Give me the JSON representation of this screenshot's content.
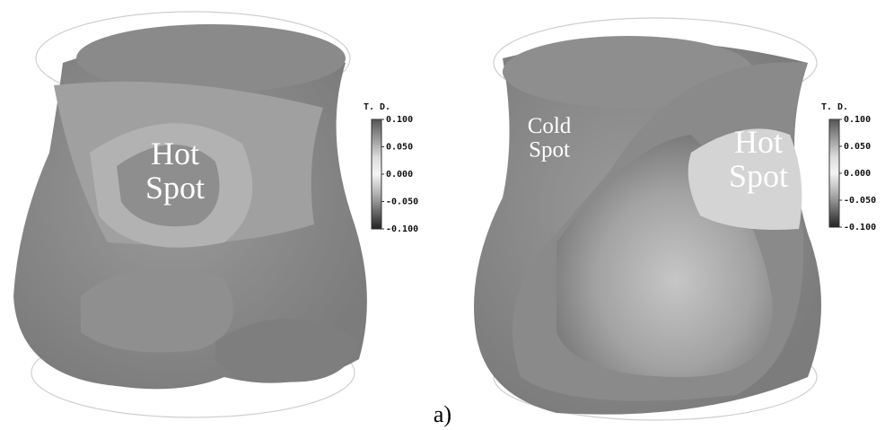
{
  "panels": [
    {
      "annotation": "Hot Spot",
      "colorbar": {
        "title": "T. D.",
        "ticks": [
          {
            "value": 0.1,
            "label": "0.100"
          },
          {
            "value": 0.05,
            "label": "0.050"
          },
          {
            "value": 0,
            "label": "0.000"
          },
          {
            "value": -0.05,
            "label": "-0.050"
          },
          {
            "value": -0.1,
            "label": "-0.100"
          }
        ]
      }
    },
    {
      "annotations": [
        "Cold Spot",
        "Hot Spot"
      ],
      "colorbar": {
        "title": "T. D.",
        "ticks": [
          {
            "value": 0.1,
            "label": "0.100"
          },
          {
            "value": 0.05,
            "label": "0.050"
          },
          {
            "value": 0,
            "label": "0.000"
          },
          {
            "value": -0.05,
            "label": "-0.050"
          },
          {
            "value": -0.1,
            "label": "-0.100"
          }
        ]
      }
    }
  ],
  "caption": "a)"
}
